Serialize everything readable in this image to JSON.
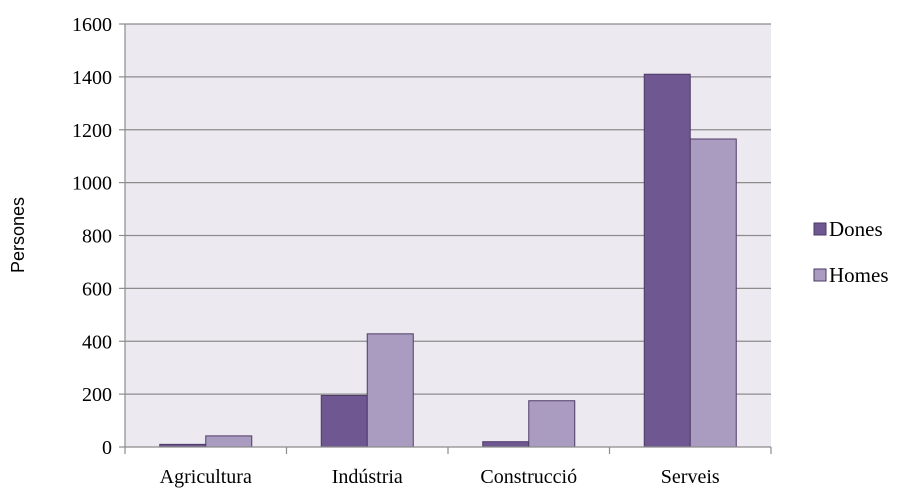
{
  "chart_data": {
    "type": "bar",
    "title": "",
    "xlabel": "",
    "ylabel": "Persones",
    "ylim": [
      0,
      1600
    ],
    "yticks": [
      0,
      200,
      400,
      600,
      800,
      1000,
      1200,
      1400,
      1600
    ],
    "grid": true,
    "legend_position": "right",
    "categories": [
      "Agricultura",
      "Indústria",
      "Construcció",
      "Serveis"
    ],
    "series": [
      {
        "name": "Dones",
        "color": "#6f5791",
        "values": [
          10,
          195,
          20,
          1410
        ]
      },
      {
        "name": "Homes",
        "color": "#aa9cc0",
        "values": [
          42,
          428,
          175,
          1165
        ]
      }
    ],
    "plot_background": "#ece9f0"
  }
}
